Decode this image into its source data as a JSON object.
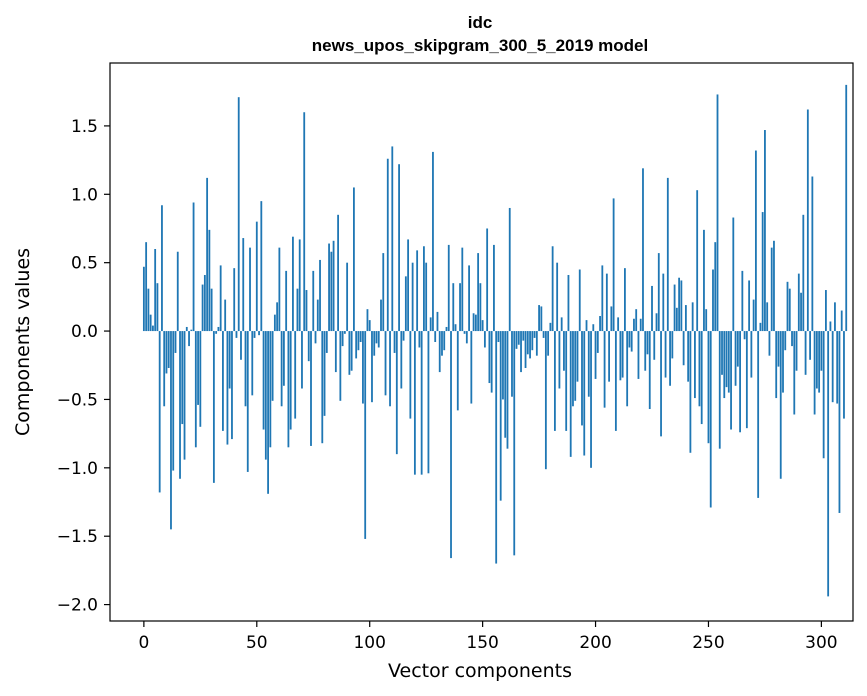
{
  "chart_data": {
    "type": "bar",
    "title": "idc",
    "subtitle": "news_upos_skipgram_300_5_2019 model",
    "xlabel": "Vector components",
    "ylabel": "Components values",
    "xlim": [
      -15,
      314
    ],
    "ylim": [
      -2.12,
      1.96
    ],
    "xticks": [
      0,
      50,
      100,
      150,
      200,
      250,
      300
    ],
    "xtick_labels": [
      "0",
      "50",
      "100",
      "150",
      "200",
      "250",
      "300"
    ],
    "yticks": [
      -2.0,
      -1.5,
      -1.0,
      -0.5,
      0.0,
      0.5,
      1.0,
      1.5
    ],
    "ytick_labels": [
      "−2.0",
      "−1.5",
      "−1.0",
      "−0.5",
      "0.0",
      "0.5",
      "1.0",
      "1.5"
    ],
    "grid": false,
    "color": "#1f77b4",
    "values": [
      0.47,
      0.65,
      0.31,
      0.12,
      0.04,
      0.6,
      0.35,
      -1.18,
      0.92,
      -0.55,
      -0.31,
      -0.27,
      -1.45,
      -1.02,
      -0.16,
      0.58,
      -1.08,
      -0.68,
      -0.94,
      0.03,
      -0.11,
      0.01,
      0.94,
      -0.85,
      -0.54,
      -0.7,
      0.34,
      0.41,
      1.12,
      0.74,
      0.31,
      -1.11,
      -0.02,
      0.03,
      0.48,
      -0.73,
      0.23,
      -0.83,
      -0.42,
      -0.79,
      0.46,
      -0.05,
      1.71,
      -0.21,
      0.68,
      -0.55,
      -1.03,
      0.61,
      -0.47,
      -0.05,
      0.8,
      -0.03,
      0.95,
      -0.72,
      -0.94,
      -1.19,
      -0.85,
      -0.51,
      0.12,
      0.21,
      0.61,
      -0.55,
      -0.4,
      0.44,
      -0.85,
      -0.72,
      0.69,
      -0.64,
      0.31,
      0.67,
      -0.42,
      1.6,
      0.3,
      -0.22,
      -0.84,
      0.44,
      -0.09,
      0.23,
      0.52,
      -0.82,
      -0.62,
      -0.16,
      0.64,
      0.58,
      0.66,
      -0.3,
      0.85,
      -0.51,
      -0.11,
      -0.02,
      0.5,
      -0.32,
      -0.29,
      1.05,
      -0.2,
      -0.14,
      -0.08,
      -0.53,
      -1.52,
      0.16,
      0.08,
      -0.52,
      -0.18,
      -0.09,
      -0.12,
      0.23,
      0.57,
      -0.47,
      1.26,
      -0.55,
      1.35,
      -0.16,
      -0.9,
      1.22,
      -0.42,
      -0.07,
      0.4,
      0.67,
      -0.64,
      0.5,
      -1.05,
      0.59,
      -0.12,
      -1.05,
      0.62,
      0.5,
      -1.04,
      0.1,
      1.31,
      -0.08,
      0.14,
      -0.3,
      -0.18,
      -0.14,
      0.03,
      0.63,
      -1.66,
      0.35,
      0.05,
      -0.58,
      0.35,
      0.61,
      -0.02,
      -0.09,
      0.48,
      -0.53,
      0.13,
      0.12,
      0.57,
      0.35,
      0.08,
      -0.12,
      0.75,
      -0.38,
      -0.45,
      0.63,
      -1.7,
      -0.08,
      -1.24,
      -0.5,
      -0.78,
      -0.86,
      0.9,
      -0.48,
      -1.64,
      -0.13,
      -0.1,
      -0.3,
      -0.07,
      -0.27,
      -0.17,
      -0.2,
      -0.14,
      -0.05,
      -0.18,
      0.19,
      0.18,
      -0.05,
      -1.01,
      -0.18,
      0.06,
      0.62,
      -0.73,
      0.5,
      -0.42,
      0.1,
      -0.29,
      -0.73,
      0.41,
      -0.92,
      -0.55,
      -0.51,
      -0.37,
      0.45,
      -0.69,
      -0.91,
      0.08,
      -0.48,
      -1.0,
      0.05,
      -0.35,
      -0.16,
      0.11,
      0.48,
      -0.56,
      0.42,
      -0.37,
      0.18,
      0.97,
      -0.73,
      0.1,
      -0.36,
      -0.34,
      0.46,
      -0.55,
      -0.12,
      -0.15,
      0.09,
      0.16,
      -0.35,
      0.09,
      1.19,
      -0.29,
      -0.17,
      -0.57,
      0.33,
      -0.21,
      0.13,
      0.57,
      -0.77,
      0.42,
      -0.34,
      1.12,
      -0.4,
      -0.2,
      0.34,
      0.17,
      0.39,
      0.37,
      -0.25,
      0.19,
      -0.37,
      -0.89,
      0.21,
      -0.49,
      1.03,
      -0.55,
      -0.68,
      0.74,
      0.16,
      -0.82,
      -1.29,
      0.45,
      0.65,
      1.73,
      -0.86,
      -0.32,
      -0.49,
      -0.41,
      -0.45,
      -0.72,
      0.83,
      -0.4,
      -0.26,
      -0.74,
      0.44,
      -0.06,
      -0.71,
      0.37,
      -0.34,
      0.23,
      1.32,
      -1.22,
      0.06,
      0.87,
      1.47,
      0.21,
      -0.18,
      0.61,
      0.66,
      -0.49,
      -0.26,
      -1.08,
      -0.45,
      -0.14,
      0.36,
      0.31,
      -0.11,
      -0.61,
      -0.29,
      0.42,
      0.28,
      0.85,
      -0.32,
      1.62,
      -0.21,
      1.13,
      -0.61,
      -0.42,
      -0.45,
      -0.29,
      -0.93,
      0.3,
      -1.94,
      0.07,
      -0.52,
      0.21,
      -0.53,
      -1.33,
      0.15,
      -0.64,
      1.8
    ]
  }
}
